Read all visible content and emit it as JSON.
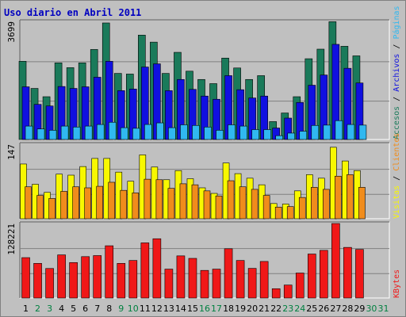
{
  "colors": {
    "background": "#ffffff",
    "frame": "#c0c0c0",
    "plot_bg": "#c0c0c0",
    "title": "#0000c0",
    "accesos": "#1a7a5a",
    "archivos": "#1010e0",
    "paginas": "#30b8f0",
    "visitas": "#f8f800",
    "clientes": "#f08c1c",
    "kbytes": "#f01818",
    "weekday_text": "#000000",
    "weekend_text": "#008040"
  },
  "chart_data": {
    "type": "bar",
    "title": "Uso diario en Abril 2011",
    "categories": [
      "1",
      "2",
      "3",
      "4",
      "5",
      "6",
      "7",
      "8",
      "9",
      "10",
      "11",
      "12",
      "13",
      "14",
      "15",
      "16",
      "17",
      "18",
      "19",
      "20",
      "21",
      "22",
      "23",
      "24",
      "25",
      "26",
      "27",
      "28",
      "29",
      "30",
      "31"
    ],
    "weekend_days": [
      "2",
      "3",
      "9",
      "10",
      "16",
      "17",
      "23",
      "24",
      "30",
      "31"
    ],
    "panels": [
      {
        "ymax_label": "3699",
        "ymax": 3699,
        "series": [
          {
            "name": "Accesos",
            "values": [
              2450,
              1600,
              1340,
              2400,
              2250,
              2400,
              2820,
              3650,
              2070,
              2050,
              3270,
              3050,
              2070,
              2730,
              2140,
              1880,
              1750,
              2550,
              2240,
              1880,
              2000,
              560,
              830,
              1340,
              2530,
              2830,
              3690,
              2920,
              2620,
              0,
              0
            ]
          },
          {
            "name": "Archivos",
            "values": [
              1650,
              1100,
              1050,
              1660,
              1600,
              1650,
              1950,
              2450,
              1530,
              1580,
              2270,
              2370,
              1530,
              1880,
              1570,
              1360,
              1260,
              2000,
              1560,
              1300,
              1360,
              360,
              670,
              1160,
              1700,
              2020,
              2980,
              2230,
              1770,
              0,
              0
            ]
          },
          {
            "name": "Páginas",
            "values": [
              420,
              330,
              290,
              420,
              390,
              420,
              470,
              540,
              370,
              350,
              470,
              520,
              370,
              460,
              440,
              390,
              290,
              460,
              420,
              310,
              310,
              120,
              200,
              260,
              440,
              450,
              590,
              470,
              450,
              0,
              0
            ]
          }
        ]
      },
      {
        "ymax_label": "147",
        "ymax": 147,
        "series": [
          {
            "name": "Visitas",
            "values": [
              108,
              68,
              52,
              88,
              86,
              103,
              119,
              119,
              92,
              74,
              126,
              102,
              77,
              95,
              79,
              61,
              50,
              110,
              89,
              80,
              67,
              30,
              29,
              55,
              87,
              80,
              141,
              114,
              95,
              0,
              0
            ]
          },
          {
            "name": "Clientes",
            "values": [
              63,
              46,
              40,
              54,
              63,
              61,
              64,
              72,
              56,
              51,
              78,
              77,
              60,
              69,
              67,
              55,
              45,
              75,
              63,
              58,
              46,
              23,
              24,
              42,
              62,
              58,
              84,
              87,
              62,
              0,
              0
            ]
          }
        ]
      },
      {
        "ymax_label": "128221",
        "ymax": 128221,
        "series": [
          {
            "name": "KBytes",
            "values": [
              69500,
              59600,
              50800,
              74200,
              61000,
              71200,
              73000,
              89900,
              59600,
              64600,
              94900,
              102000,
              49700,
              72500,
              68200,
              47500,
              49700,
              84800,
              64600,
              51000,
              62900,
              16000,
              22300,
              43000,
              75700,
              82000,
              128200,
              87100,
              83600,
              0,
              0
            ]
          }
        ]
      }
    ]
  },
  "legend": {
    "panel1": [
      "Accesos",
      "Archivos",
      "Páginas"
    ],
    "panel2": [
      "Visitas",
      "Clientes"
    ],
    "panel3": [
      "KBytes"
    ],
    "separator": " / "
  }
}
